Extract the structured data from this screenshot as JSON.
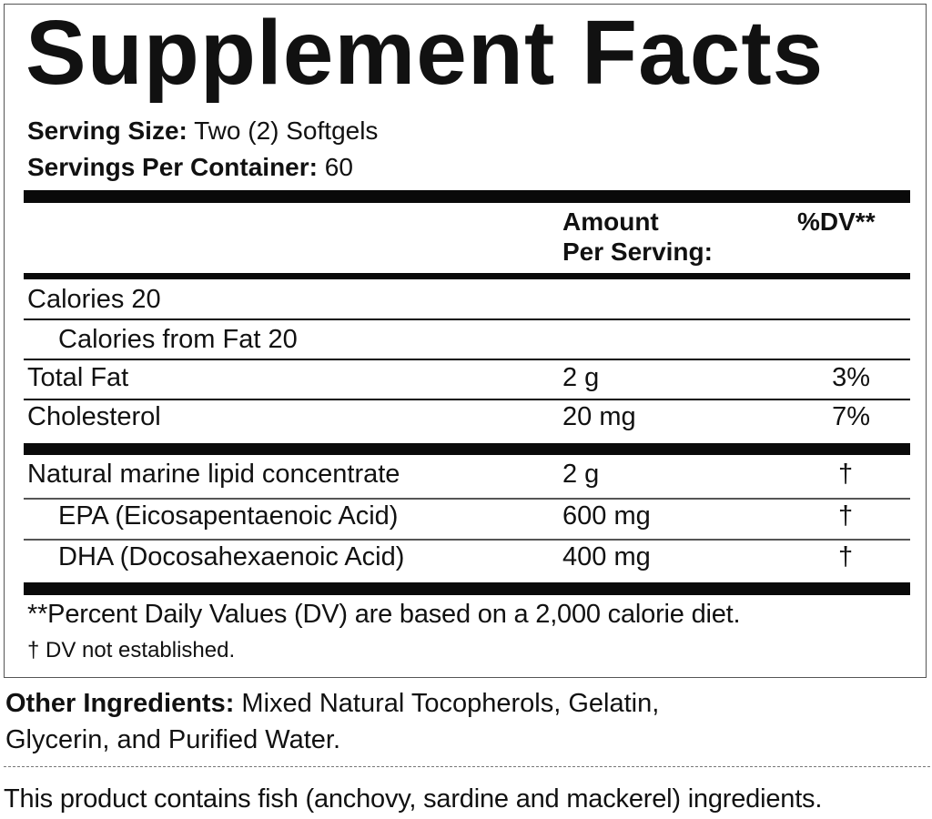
{
  "title": "Supplement Facts",
  "serving_size": {
    "label": "Serving Size:",
    "value": "Two (2) Softgels"
  },
  "servings_per_container": {
    "label": "Servings Per Container:",
    "value": "60"
  },
  "header": {
    "amount_line1": "Amount",
    "amount_line2": "Per Serving:",
    "dv": "%DV**"
  },
  "rows": [
    {
      "name": "Calories  20",
      "amount": "",
      "dv": ""
    },
    {
      "name": "Calories from Fat  20",
      "amount": "",
      "dv": ""
    },
    {
      "name": "Total Fat",
      "amount": "2 g",
      "dv": "3%"
    },
    {
      "name": "Cholesterol",
      "amount": "20 mg",
      "dv": "7%"
    },
    {
      "name": "Natural marine lipid concentrate",
      "amount": "2 g",
      "dv": "†"
    },
    {
      "name": "EPA (Eicosapentaenoic Acid)",
      "amount": "600 mg",
      "dv": "†"
    },
    {
      "name": "DHA (Docosahexaenoic Acid)",
      "amount": "400 mg",
      "dv": "†"
    }
  ],
  "footnotes": [
    "**Percent Daily Values (DV) are based on a 2,000 calorie diet.",
    "† DV not established."
  ],
  "other_ingredients": {
    "label": "Other Ingredients:",
    "line1": "Mixed Natural Tocopherols, Gelatin,",
    "line2": "Glycerin, and Purified Water."
  },
  "allergen": "This product contains fish (anchovy, sardine and mackerel) ingredients."
}
